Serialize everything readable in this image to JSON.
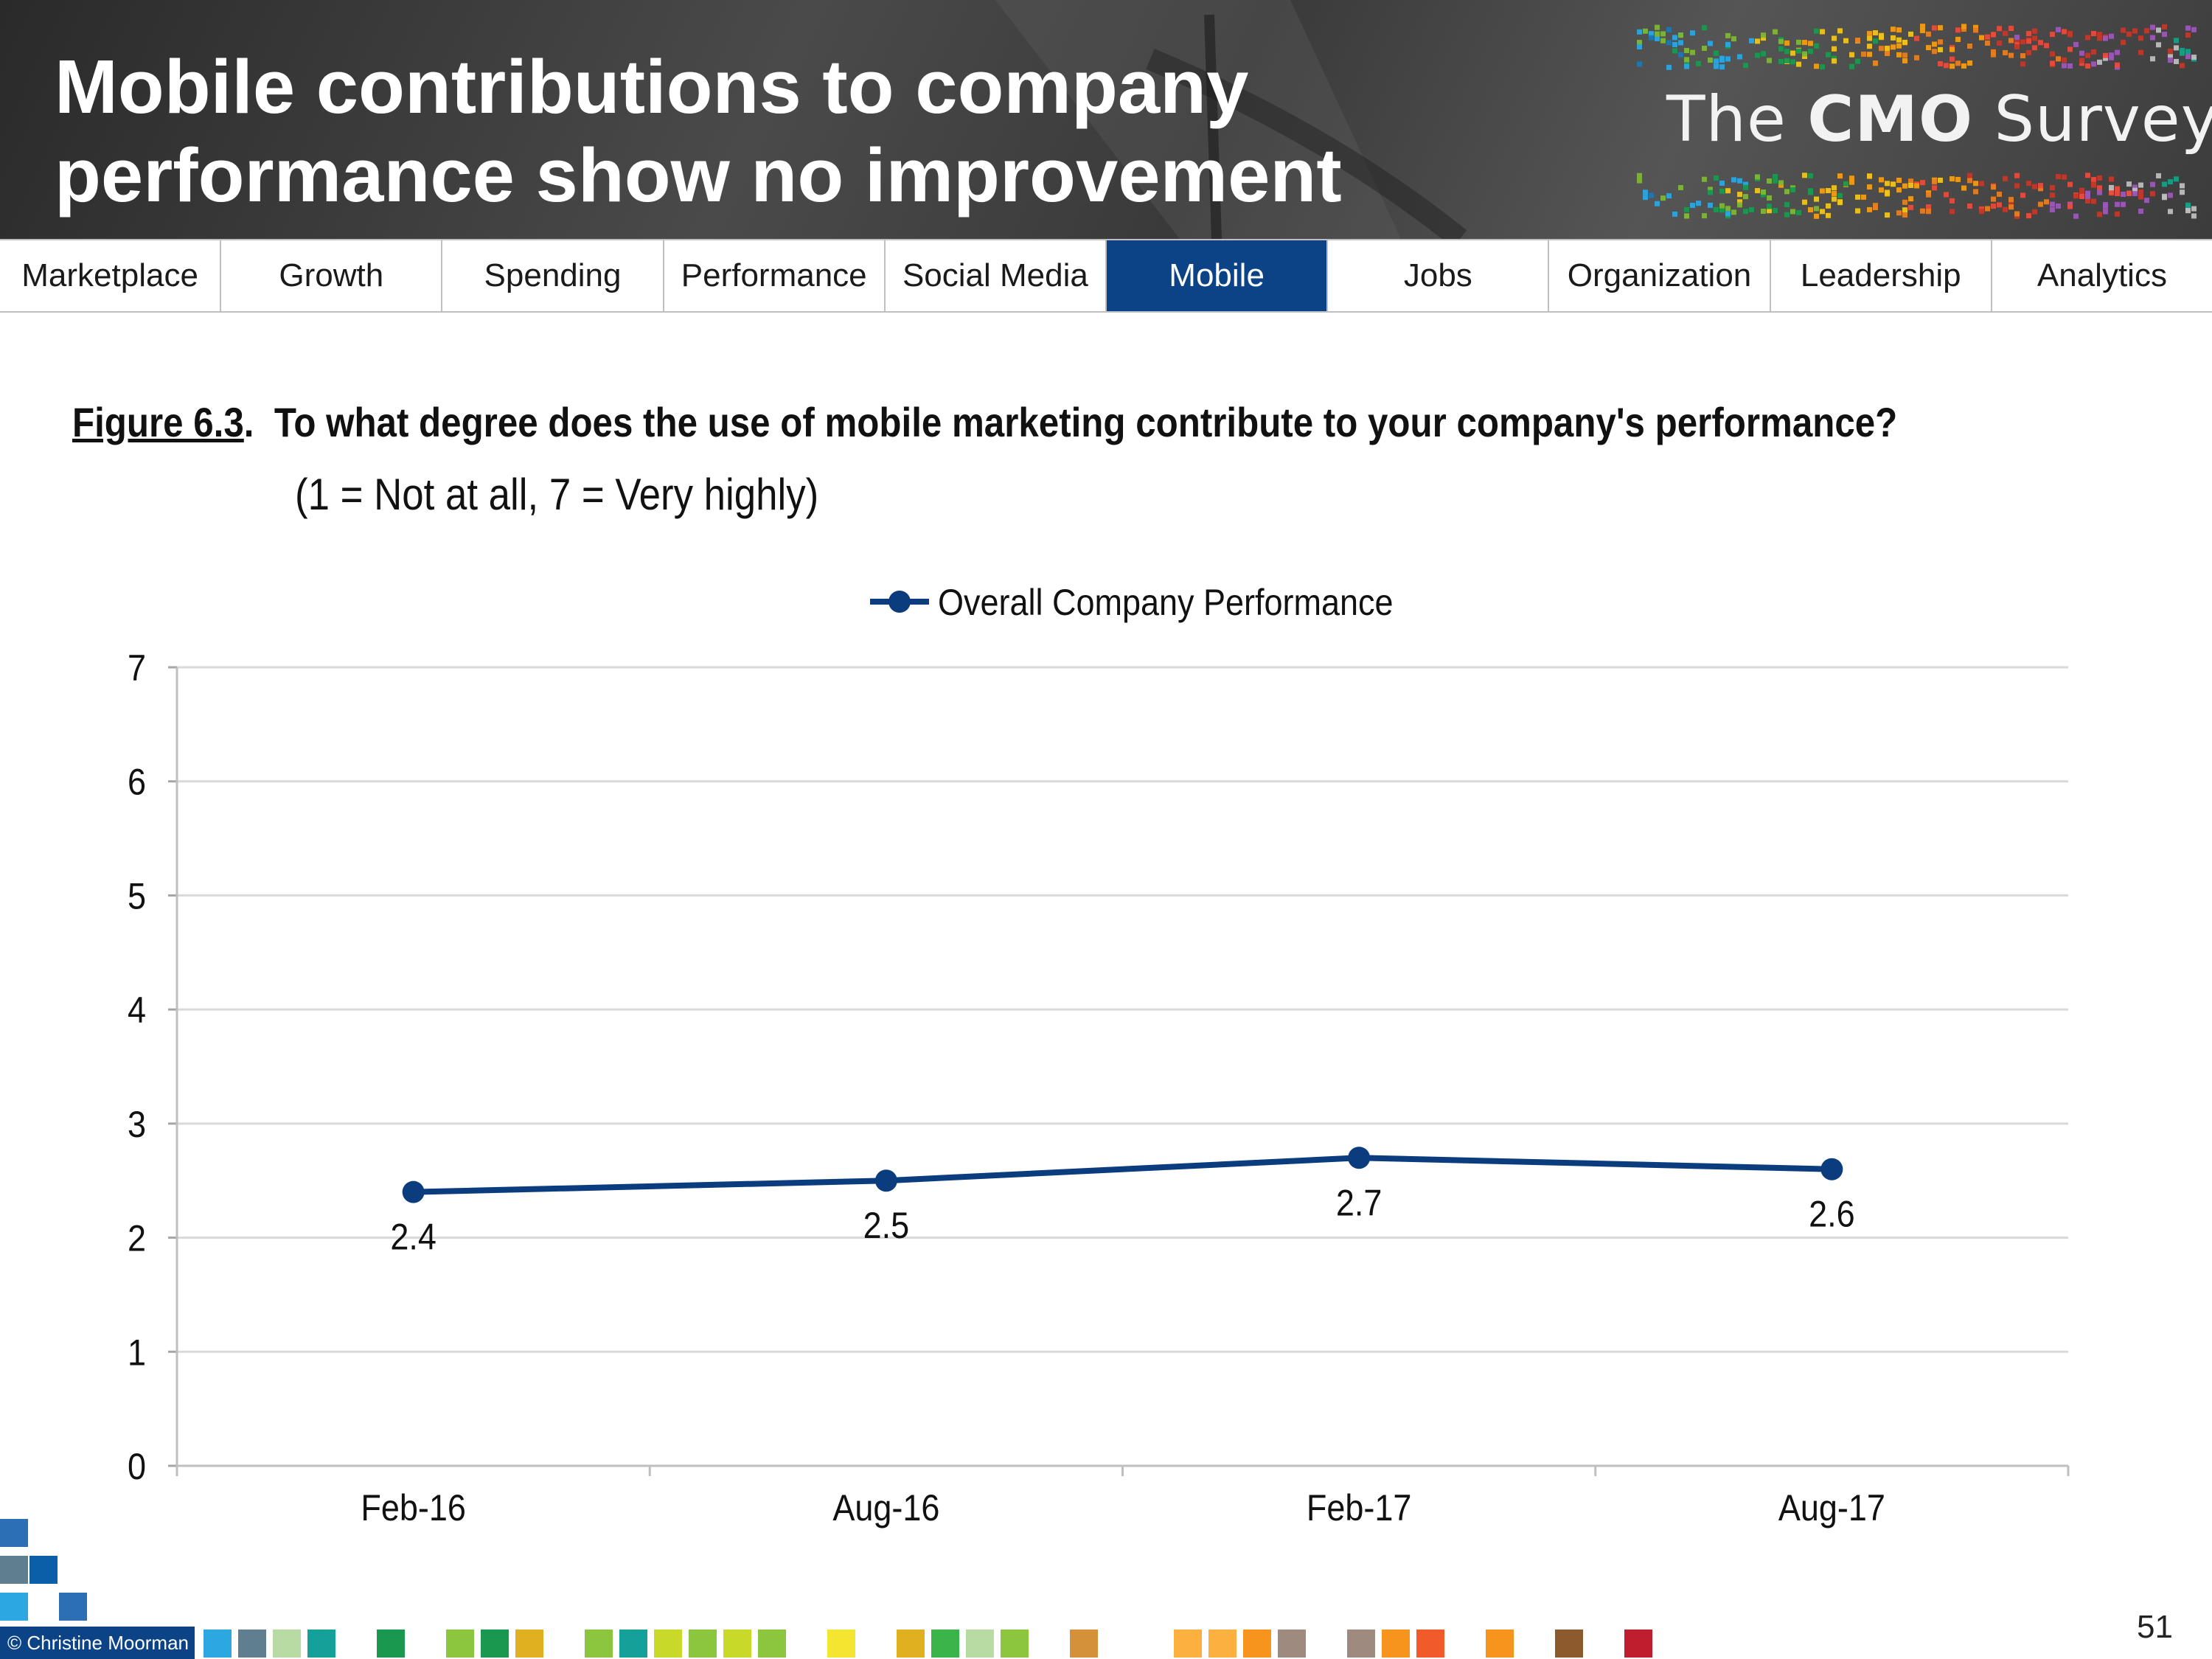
{
  "header": {
    "title_line1": "Mobile contributions to company",
    "title_line2": "performance show no improvement",
    "logo_prefix": "The",
    "logo_bold": "CMO",
    "logo_suffix": "Survey"
  },
  "nav": {
    "tabs": [
      {
        "label": "Marketplace",
        "active": false
      },
      {
        "label": "Growth",
        "active": false
      },
      {
        "label": "Spending",
        "active": false
      },
      {
        "label": "Performance",
        "active": false
      },
      {
        "label": "Social Media",
        "active": false
      },
      {
        "label": "Mobile",
        "active": true
      },
      {
        "label": "Jobs",
        "active": false
      },
      {
        "label": "Organization",
        "active": false
      },
      {
        "label": "Leadership",
        "active": false
      },
      {
        "label": "Analytics",
        "active": false
      }
    ]
  },
  "figure": {
    "number": "Figure 6.3",
    "question": "To what degree does the use of mobile marketing contribute to your company's performance?",
    "scale_note": "(1 = Not at all, 7 = Very highly)"
  },
  "chart_data": {
    "type": "line",
    "categories": [
      "Feb-16",
      "Aug-16",
      "Feb-17",
      "Aug-17"
    ],
    "series": [
      {
        "name": "Overall Company Performance",
        "values": [
          2.4,
          2.5,
          2.7,
          2.6
        ],
        "color": "#0b3d7e"
      }
    ],
    "data_labels": [
      "2.4",
      "2.5",
      "2.7",
      "2.6"
    ],
    "ylim": [
      0,
      7
    ],
    "yticks": [
      0,
      1,
      2,
      3,
      4,
      5,
      6,
      7
    ],
    "grid": true,
    "legend_position": "top-center"
  },
  "footer": {
    "copyright": "© Christine Moorman",
    "page_number": "51"
  },
  "colors": {
    "nav_active": "#0b4386",
    "series_line": "#0b3d7e",
    "gridline": "#d9d9d9"
  }
}
